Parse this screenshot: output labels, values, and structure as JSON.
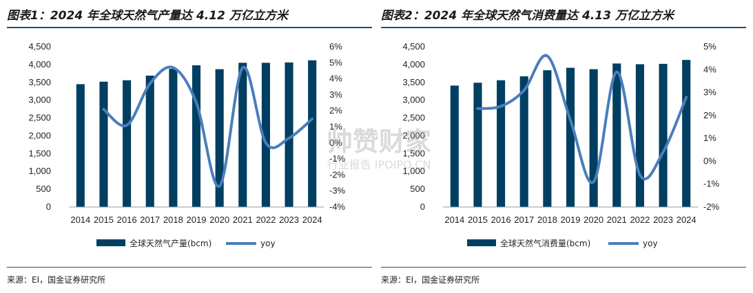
{
  "colors": {
    "bar": "#003f61",
    "line": "#4a7ebb",
    "rule": "#1f4e79"
  },
  "watermark": {
    "logo": "帅赞财家",
    "sub": "行业报告 IPOIPO.CN"
  },
  "chart_data": [
    {
      "type": "bar",
      "title": "图表1：2024 年全球天然气产量达 4.12 万亿立方米",
      "source": "来源：EI，国金证券研究所",
      "categories": [
        "2014",
        "2015",
        "2016",
        "2017",
        "2018",
        "2019",
        "2020",
        "2021",
        "2022",
        "2023",
        "2024"
      ],
      "series": [
        {
          "name": "全球天然气产量(bcm)",
          "type": "bar",
          "axis": "left",
          "values": [
            3450,
            3520,
            3560,
            3690,
            3880,
            3980,
            3870,
            4050,
            4050,
            4060,
            4120
          ]
        },
        {
          "name": "yoy",
          "type": "line",
          "axis": "right",
          "values": [
            null,
            2.1,
            1.1,
            3.7,
            4.7,
            2.5,
            -2.7,
            4.7,
            0.0,
            0.3,
            1.5
          ]
        }
      ],
      "ylim_left": [
        0,
        4500
      ],
      "ylim_right": [
        -4,
        6
      ],
      "yticks_left": [
        "0",
        "500",
        "1,000",
        "1,500",
        "2,000",
        "2,500",
        "3,000",
        "3,500",
        "4,000",
        "4,500"
      ],
      "yticks_right": [
        "-4%",
        "-3%",
        "-2%",
        "-1%",
        "0%",
        "1%",
        "2%",
        "3%",
        "4%",
        "5%",
        "6%"
      ],
      "legend": "bottom",
      "grid": false
    },
    {
      "type": "bar",
      "title": "图表2：2024 年全球天然气消费量达 4.13 万亿立方米",
      "source": "来源：EI，国金证券研究所",
      "categories": [
        "2014",
        "2015",
        "2016",
        "2017",
        "2018",
        "2019",
        "2020",
        "2021",
        "2022",
        "2023",
        "2024"
      ],
      "series": [
        {
          "name": "全球天然气消费量(bcm)",
          "type": "bar",
          "axis": "left",
          "values": [
            3410,
            3490,
            3560,
            3670,
            3840,
            3910,
            3870,
            4030,
            4010,
            4020,
            4130
          ]
        },
        {
          "name": "yoy",
          "type": "line",
          "axis": "right",
          "values": [
            null,
            2.3,
            2.4,
            3.1,
            4.6,
            1.8,
            -0.9,
            3.9,
            -0.6,
            0.4,
            2.8
          ]
        }
      ],
      "ylim_left": [
        0,
        4500
      ],
      "ylim_right": [
        -2,
        5
      ],
      "yticks_left": [
        "0",
        "500",
        "1,000",
        "1,500",
        "2,000",
        "2,500",
        "3,000",
        "3,500",
        "4,000",
        "4,500"
      ],
      "yticks_right": [
        "-2%",
        "-1%",
        "0%",
        "1%",
        "2%",
        "3%",
        "4%",
        "5%"
      ],
      "legend": "bottom",
      "grid": false
    }
  ]
}
